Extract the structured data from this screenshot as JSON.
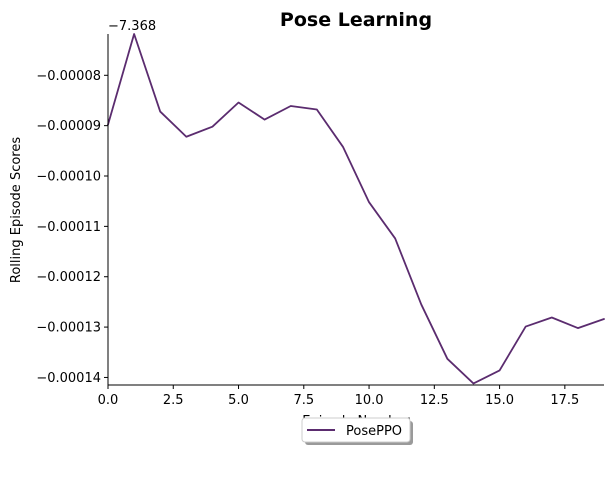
{
  "chart_data": {
    "type": "line",
    "title": "Pose Learning",
    "xlabel": "Episode Number",
    "ylabel": "Rolling Episode Scores",
    "offset_label": "−7.368",
    "xlim": [
      0,
      19
    ],
    "ylim": [
      -0.0001415,
      -7.18e-05
    ],
    "x_ticks": [
      0,
      2.5,
      5,
      7.5,
      10,
      12.5,
      15,
      17.5
    ],
    "x_tick_labels": [
      "0.0",
      "2.5",
      "5.0",
      "7.5",
      "10.0",
      "12.5",
      "15.0",
      "17.5"
    ],
    "y_ticks": [
      -8e-05,
      -9e-05,
      -0.0001,
      -0.00011,
      -0.00012,
      -0.00013,
      -0.00014
    ],
    "y_tick_labels": [
      "−0.00008",
      "−0.00009",
      "−0.00010",
      "−0.00011",
      "−0.00012",
      "−0.00013",
      "−0.00014"
    ],
    "grid": false,
    "legend_position": "below",
    "series": [
      {
        "name": "PosePPO",
        "color": "#5b2c6f",
        "x": [
          0,
          1,
          2,
          3,
          4,
          5,
          6,
          7,
          8,
          9,
          10,
          11,
          12,
          13,
          14,
          15,
          16,
          17,
          18,
          19
        ],
        "y": [
          -8.98e-05,
          -7.18e-05,
          -8.72e-05,
          -9.22e-05,
          -9.02e-05,
          -8.54e-05,
          -8.88e-05,
          -8.61e-05,
          -8.68e-05,
          -9.42e-05,
          -0.0001052,
          -0.0001124,
          -0.0001255,
          -0.0001363,
          -0.0001412,
          -0.0001386,
          -0.0001299,
          -0.0001281,
          -0.0001302,
          -0.0001284
        ]
      }
    ]
  }
}
